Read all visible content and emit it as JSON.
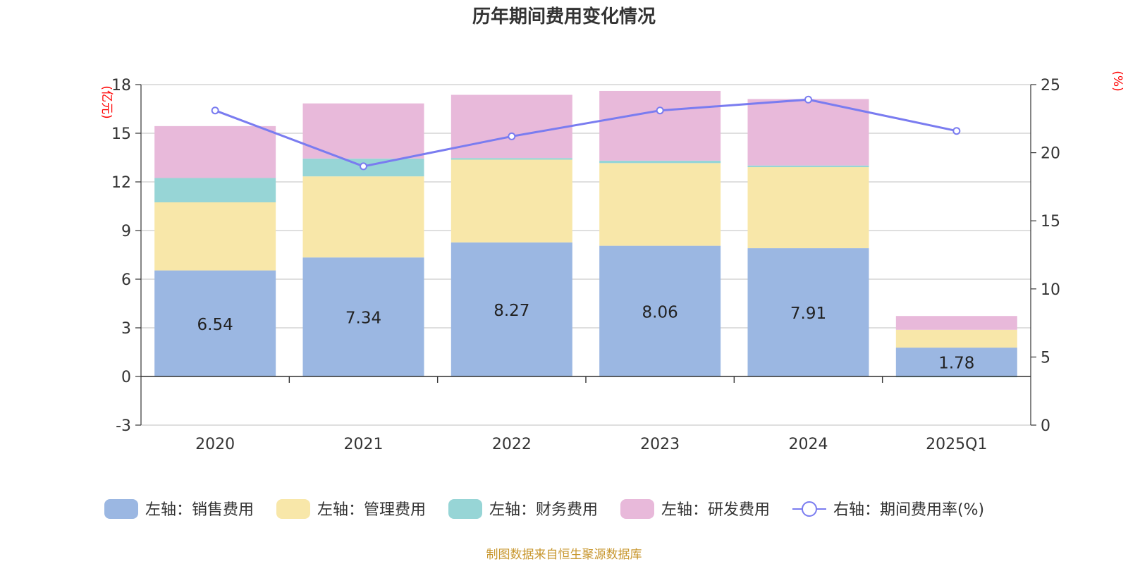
{
  "chart_data": {
    "type": "bar",
    "stacked": true,
    "title": "历年期间费用变化情况",
    "categories": [
      "2020",
      "2021",
      "2022",
      "2023",
      "2024",
      "2025Q1"
    ],
    "y_left": {
      "unit": "(亿元)",
      "ylim": [
        -3,
        18
      ],
      "ticks": [
        -3,
        0,
        3,
        6,
        9,
        12,
        15,
        18
      ]
    },
    "y_right": {
      "unit": "(%)",
      "ylim": [
        0,
        25
      ],
      "ticks": [
        0,
        5,
        10,
        15,
        20,
        25
      ]
    },
    "series": [
      {
        "name": "左轴：销售费用",
        "axis": "left",
        "color": "#9bb7e2",
        "values": [
          6.54,
          7.34,
          8.27,
          8.06,
          7.91,
          1.78
        ],
        "labels": [
          "6.54",
          "7.34",
          "8.27",
          "8.06",
          "7.91",
          "1.78"
        ]
      },
      {
        "name": "左轴：管理费用",
        "axis": "left",
        "color": "#f8e7a9",
        "values": [
          4.2,
          5.0,
          5.1,
          5.1,
          5.0,
          1.1
        ]
      },
      {
        "name": "左轴：财务费用",
        "axis": "left",
        "color": "#97d5d6",
        "values": [
          1.5,
          1.1,
          0.1,
          0.15,
          0.1,
          -0.05
        ]
      },
      {
        "name": "左轴：研发费用",
        "axis": "left",
        "color": "#e8b9da",
        "values": [
          3.2,
          3.4,
          3.9,
          4.3,
          4.1,
          0.85
        ]
      },
      {
        "name": "右轴：期间费用率(%)",
        "axis": "right",
        "type": "line",
        "color": "#7a7cf0",
        "values": [
          23.1,
          19.0,
          21.2,
          23.1,
          23.9,
          21.6
        ]
      }
    ],
    "grid": true,
    "legend_position": "bottom"
  },
  "source": "制图数据来自恒生聚源数据库"
}
